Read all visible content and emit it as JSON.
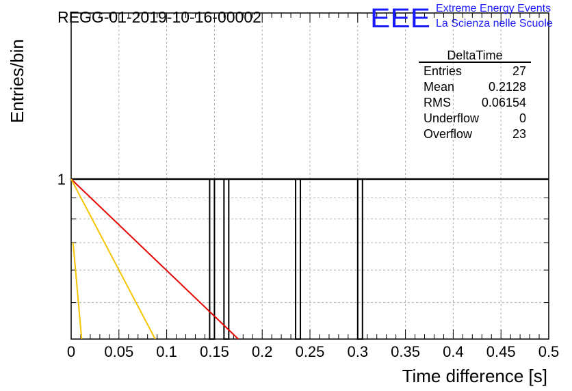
{
  "header": {
    "run_title": "REGG-01-2019-10-16-00002",
    "logo_mark": "EEE",
    "logo_line1": "Extreme Energy Events",
    "logo_line2": "La Scienza nelle Scuole",
    "logo_color": "#1a1aff"
  },
  "stats_box": {
    "title": "DeltaTime",
    "rows": [
      {
        "label": "Entries",
        "value": "27"
      },
      {
        "label": "Mean",
        "value": "0.2128"
      },
      {
        "label": "RMS",
        "value": "0.06154"
      },
      {
        "label": "Underflow",
        "value": "0"
      },
      {
        "label": "Overflow",
        "value": "23"
      }
    ]
  },
  "chart_data": {
    "type": "bar",
    "xlabel": "Time difference [s]",
    "ylabel": "Entries/bin",
    "xlim": [
      0,
      0.5
    ],
    "y_log_scale": true,
    "grid": true,
    "x_ticks": [
      "0",
      "0.05",
      "0.1",
      "0.15",
      "0.2",
      "0.25",
      "0.3",
      "0.35",
      "0.4",
      "0.45",
      "0.5"
    ],
    "y_tick_labels": [
      "1"
    ],
    "bin_width": 0.005,
    "bins": [
      {
        "x_low": 0.145,
        "x_high": 0.15,
        "count": 1
      },
      {
        "x_low": 0.16,
        "x_high": 0.165,
        "count": 1
      },
      {
        "x_low": 0.235,
        "x_high": 0.24,
        "count": 1
      },
      {
        "x_low": 0.3,
        "x_high": 0.305,
        "count": 1
      }
    ],
    "hist_color": "#000000",
    "fit_curves": [
      {
        "color": "#e60000",
        "points": [
          [
            0,
            1
          ],
          [
            0.175,
            0.3
          ]
        ]
      },
      {
        "color": "#f5c400",
        "points": [
          [
            0,
            1
          ],
          [
            0.088,
            0.3
          ]
        ]
      },
      {
        "color": "#f5c400",
        "points": [
          [
            0.002,
            0.7
          ],
          [
            0.011,
            0.3
          ]
        ]
      }
    ]
  }
}
